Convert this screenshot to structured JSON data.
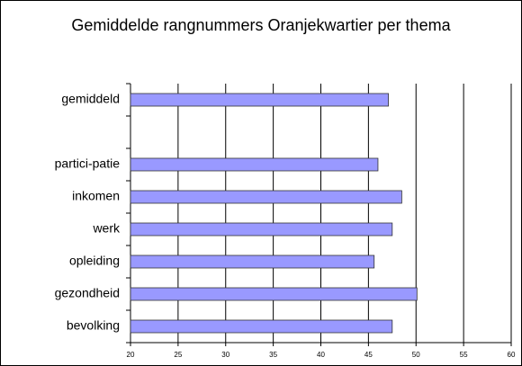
{
  "chart_data": {
    "type": "bar",
    "orientation": "horizontal",
    "title": "Gemiddelde rangnummers Oranjekwartier per thema",
    "categories": [
      "gemiddeld",
      null,
      "partici-patie",
      "inkomen",
      "werk",
      "opleiding",
      "gezondheid",
      "bevolking"
    ],
    "values": [
      47.1,
      null,
      46.0,
      48.5,
      47.5,
      45.6,
      50.1,
      47.5
    ],
    "color": "#9999ff",
    "xlim": [
      20,
      60
    ],
    "xticks": [
      20,
      25,
      30,
      35,
      40,
      45,
      50,
      55,
      60
    ],
    "grid": true
  }
}
